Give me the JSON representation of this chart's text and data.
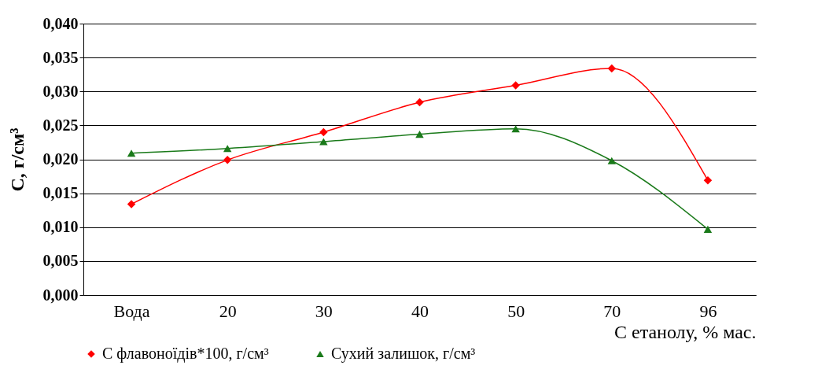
{
  "chart_data": {
    "type": "line",
    "xlabel": "С етанолу, % мас.",
    "ylabel": "С, г/см³",
    "categories": [
      "Вода",
      "20",
      "30",
      "40",
      "50",
      "70",
      "96"
    ],
    "series": [
      {
        "name": "С  флавоноїдів*100, г/см³",
        "color": "#ff0000",
        "marker": "diamond",
        "values": [
          0.0134,
          0.0199,
          0.024,
          0.0284,
          0.0309,
          0.0334,
          0.0169
        ]
      },
      {
        "name": "Сухий залишок, г/см³",
        "color": "#1a7a1a",
        "marker": "triangle",
        "values": [
          0.0209,
          0.0216,
          0.0226,
          0.0237,
          0.0245,
          0.0198,
          0.0097
        ]
      }
    ],
    "ylim": [
      0,
      0.04
    ],
    "yticks": [
      {
        "value": 0,
        "label": "0,000"
      },
      {
        "value": 0.005,
        "label": "0,005"
      },
      {
        "value": 0.01,
        "label": "0,010"
      },
      {
        "value": 0.015,
        "label": "0,015"
      },
      {
        "value": 0.02,
        "label": "0,020"
      },
      {
        "value": 0.025,
        "label": "0,025"
      },
      {
        "value": 0.03,
        "label": "0,030"
      },
      {
        "value": 0.035,
        "label": "0,035"
      },
      {
        "value": 0.04,
        "label": "0,040"
      }
    ],
    "grid": "y",
    "legend": "bottom",
    "line_style": "solid"
  }
}
